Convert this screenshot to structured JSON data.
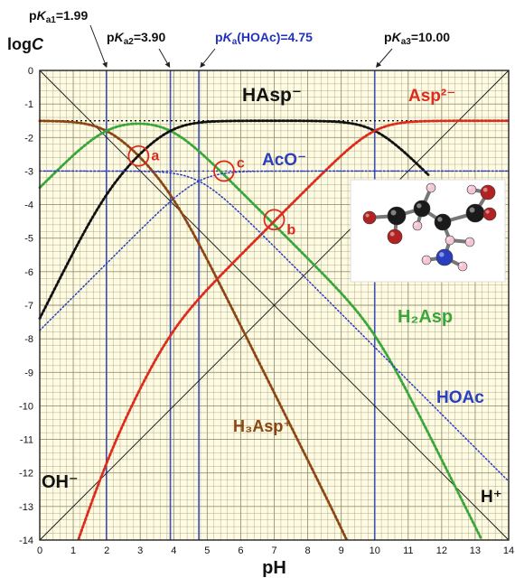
{
  "chart_data": {
    "type": "line",
    "xlabel": "pH",
    "ylabel": "logC",
    "xlim": [
      0,
      14
    ],
    "ylim": [
      -14,
      0
    ],
    "x_ticks": [
      "0",
      "1",
      "2",
      "3",
      "4",
      "5",
      "6",
      "7",
      "8",
      "9",
      "10",
      "11",
      "12",
      "13",
      "14"
    ],
    "y_ticks": [
      "0",
      "-1",
      "-2",
      "-3",
      "-4",
      "-5",
      "-6",
      "-7",
      "-8",
      "-9",
      "-10",
      "-11",
      "-12",
      "-13",
      "-14"
    ],
    "grid": true,
    "constants": {
      "log_total_asp": -1.5,
      "log_total_acetate": -3,
      "pKw": 14,
      "pKa1": 1.99,
      "pKa2": 3.9,
      "pKa3": 10.0,
      "pKa_HOAc": 4.75
    },
    "pka_labels": [
      {
        "main": "p",
        "ital": "K",
        "sub": "a1",
        "val": "=1.99",
        "x": 1.99,
        "color": "#111111"
      },
      {
        "main": "p",
        "ital": "K",
        "sub": "a2",
        "val": "=3.90",
        "x": 3.9,
        "color": "#111111"
      },
      {
        "main": "p",
        "ital": "K",
        "sub": "a",
        "val": "(HOAc)=4.75",
        "x": 4.75,
        "color": "#2233bb"
      },
      {
        "main": "p",
        "ital": "K",
        "sub": "a3",
        "val": "=10.00",
        "x": 10.0,
        "color": "#111111"
      }
    ],
    "series": [
      {
        "name": "H3Asp+",
        "label": "H₃Asp⁺",
        "color": "#8b4513",
        "style": "solid"
      },
      {
        "name": "H2Asp",
        "label": "H₂Asp",
        "color": "#3aa63a",
        "style": "solid"
      },
      {
        "name": "HAsp-",
        "label": "HAsp⁻",
        "color": "#111111",
        "style": "solid"
      },
      {
        "name": "Asp2-",
        "label": "Asp²⁻",
        "color": "#dd2a1b",
        "style": "solid"
      },
      {
        "name": "HOAc",
        "label": "HOAc",
        "color": "#2a3fbf",
        "style": "dotted"
      },
      {
        "name": "AcO-",
        "label": "AcO⁻",
        "color": "#2a3fbf",
        "style": "dotted"
      },
      {
        "name": "H+",
        "label": "H⁺",
        "color": "#111111",
        "style": "thin"
      },
      {
        "name": "OH-",
        "label": "OH⁻",
        "color": "#111111",
        "style": "thin"
      }
    ],
    "annotations": [
      {
        "name": "a",
        "label": "a",
        "x": 2.95,
        "y": -2.55
      },
      {
        "name": "b",
        "label": "b",
        "x": 7.0,
        "y": -4.45
      },
      {
        "name": "c",
        "label": "c",
        "x": 5.5,
        "y": -3.0
      }
    ]
  },
  "colors": {
    "background": "#fefbe2",
    "grid": "#8a8a6a",
    "pka_line": "#3b4fb5",
    "circle": "#dd2a1b"
  }
}
